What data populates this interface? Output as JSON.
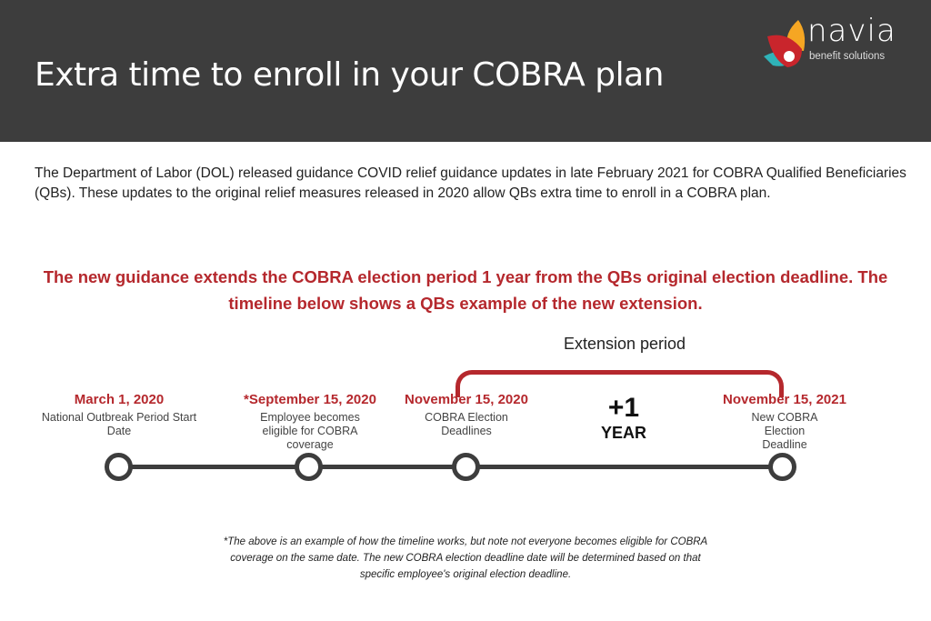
{
  "header": {
    "title": "Extra time to enroll in your COBRA plan",
    "logo": {
      "word": "navia",
      "tagline": "benefit solutions",
      "colors": [
        "#c9252c",
        "#f5a623",
        "#2fb3b8"
      ]
    }
  },
  "intro": "The Department of Labor (DOL) released guidance COVID relief  guidance updates in late February 2021 for COBRA Qualified Beneficiaries (QBs). These updates to the original relief measures released in 2020 allow QBs extra time to enroll in a COBRA plan.",
  "highlight": "The new guidance extends the COBRA election period 1 year from the QBs original election deadline. The timeline below shows a QBs example of the new extension.",
  "timeline": {
    "extension_label": "Extension period",
    "plus": "+1",
    "plus_unit": "YEAR",
    "events": [
      {
        "date": "March 1, 2020",
        "label": "National Outbreak Period Start Date"
      },
      {
        "date": "*September 15, 2020",
        "label": "Employee becomes eligible for COBRA coverage"
      },
      {
        "date": "November 15, 2020",
        "label": "COBRA Election Deadlines"
      },
      {
        "date": "November 15, 2021",
        "label": "New COBRA Election Deadline"
      }
    ]
  },
  "footnote": "*The above is an example of how the timeline works, but note not everyone becomes eligible for COBRA coverage on the same date. The new COBRA election deadline date will be determined based on that specific employee's original election deadline.",
  "colors": {
    "accent": "#b5282d",
    "header_bg": "#3d3d3d"
  }
}
